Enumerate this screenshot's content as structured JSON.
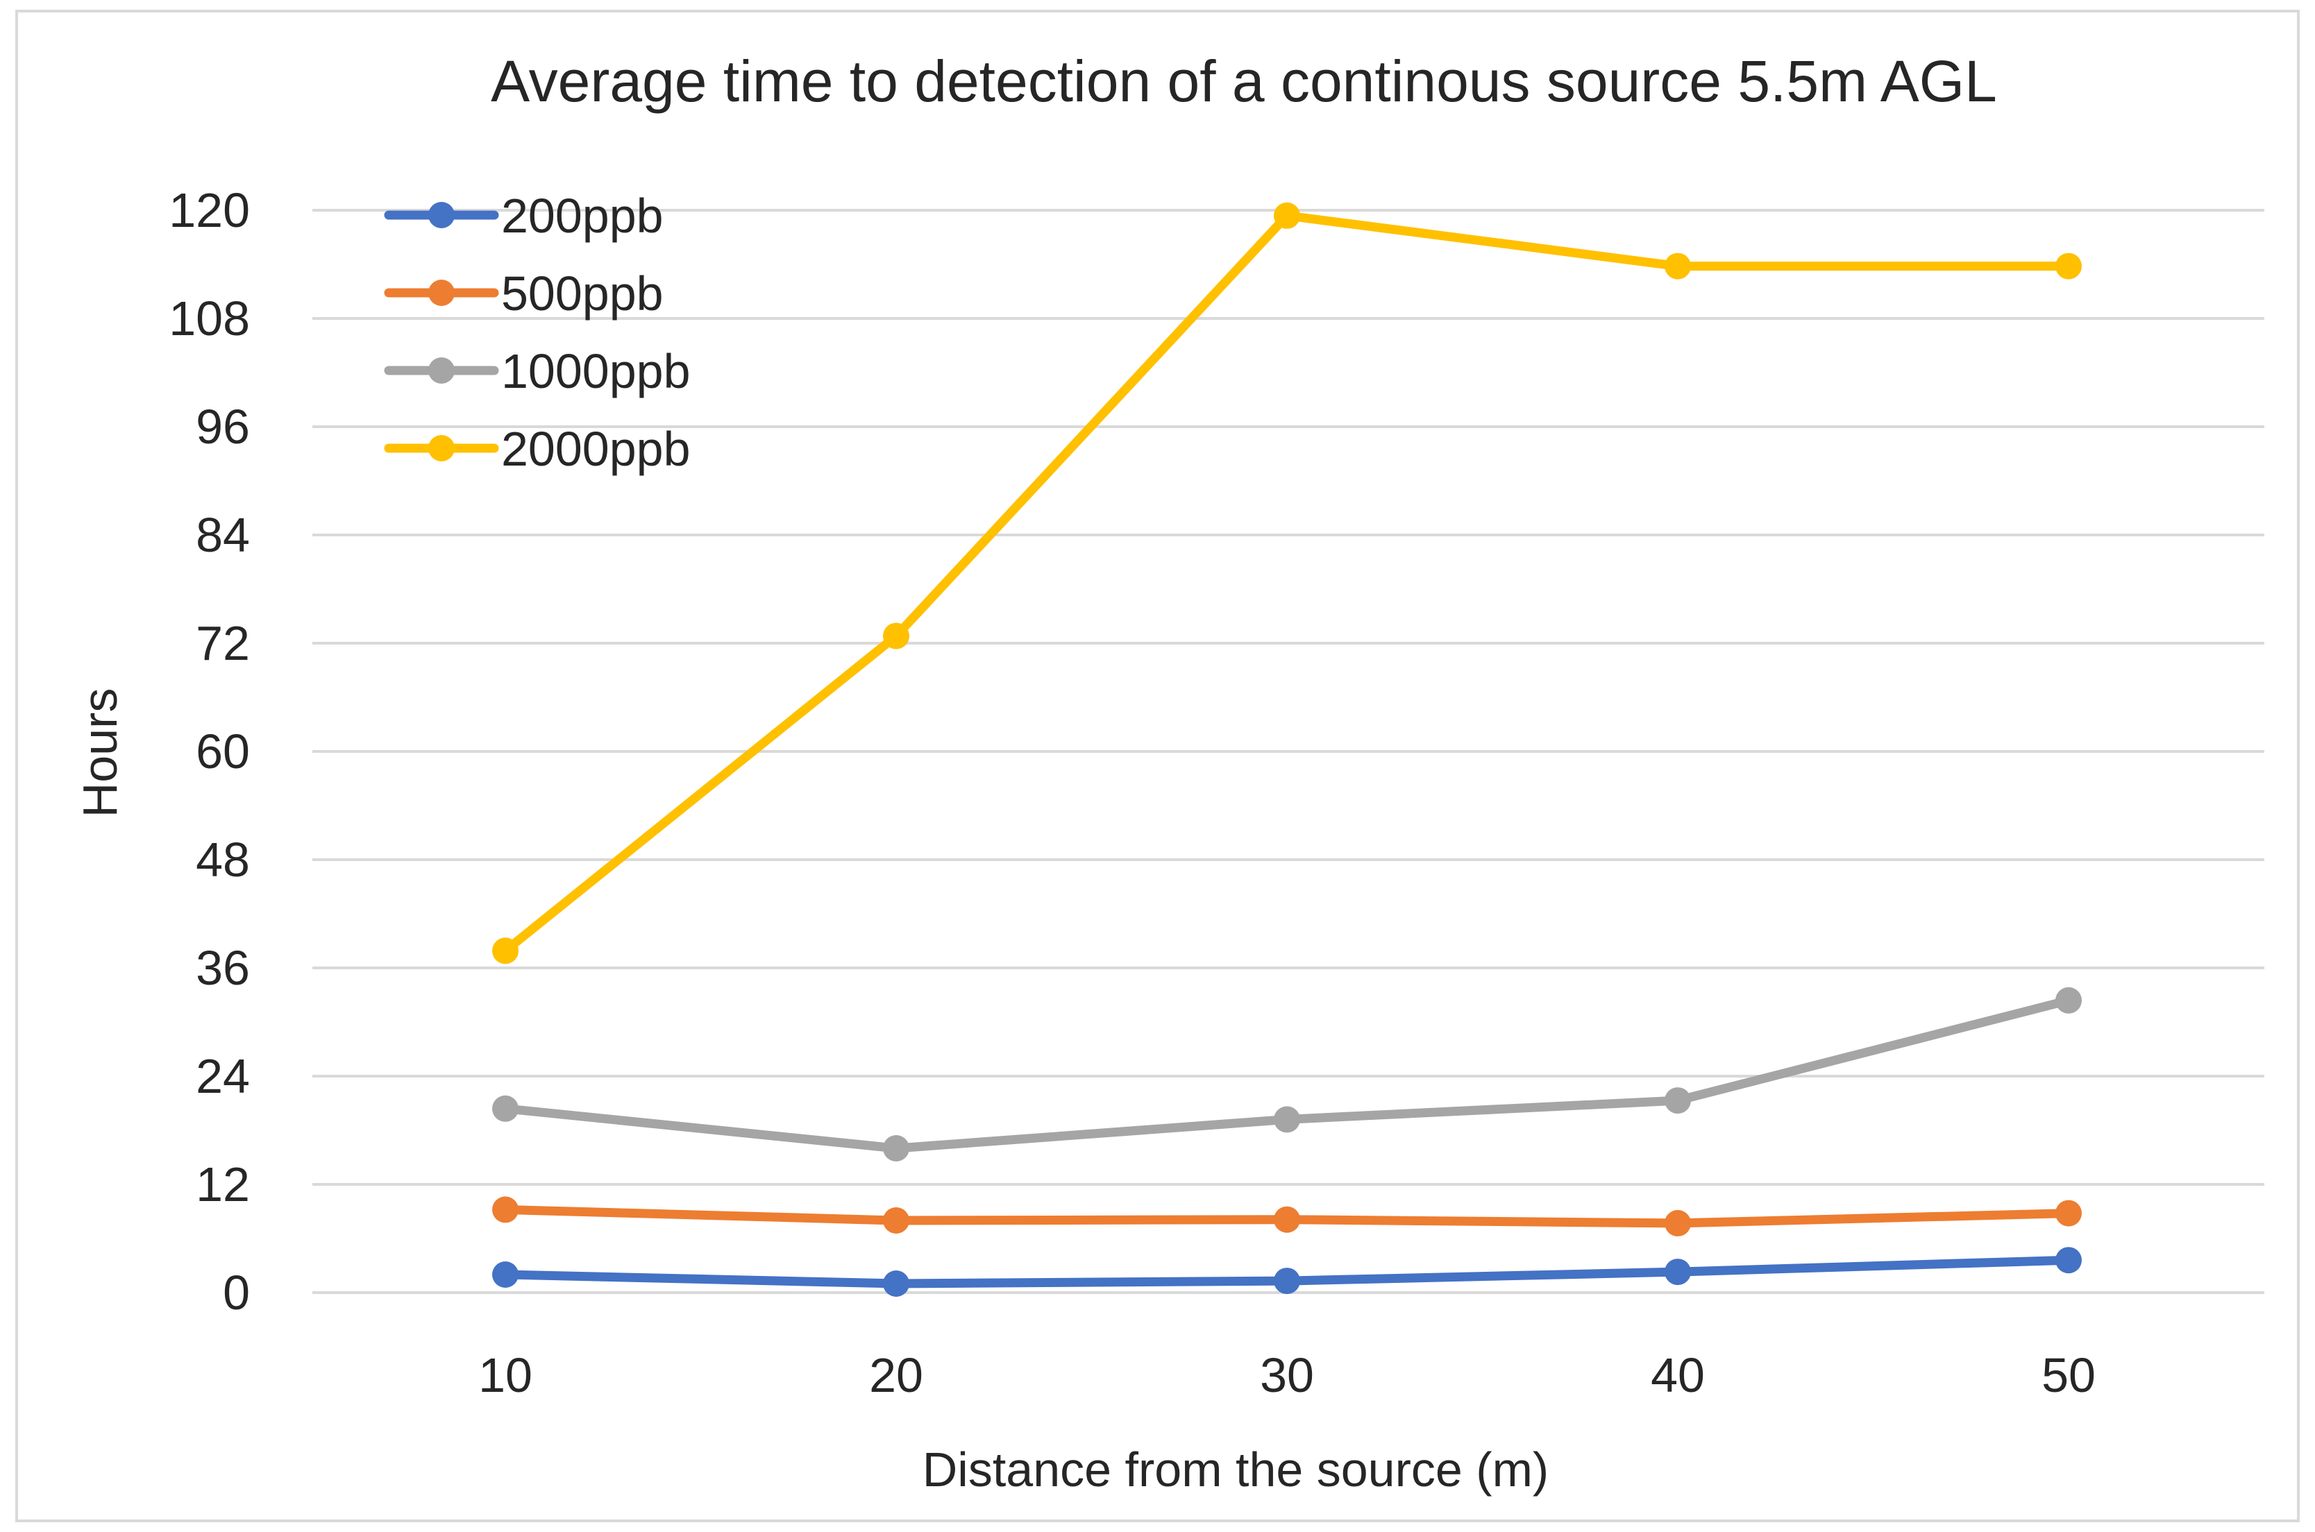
{
  "chart_data": {
    "type": "line",
    "title": "Average time to detection of a continous source 5.5m AGL",
    "xlabel": "Distance from the source (m)",
    "ylabel": "Hours",
    "x": [
      10,
      20,
      30,
      40,
      50
    ],
    "x_tick_labels": [
      "10",
      "20",
      "30",
      "40",
      "50"
    ],
    "ylim": [
      0,
      120
    ],
    "y_ticks": [
      0,
      12,
      24,
      36,
      48,
      60,
      72,
      84,
      96,
      108,
      120
    ],
    "y_tick_labels": [
      "0",
      "12",
      "24",
      "36",
      "48",
      "60",
      "72",
      "84",
      "96",
      "108",
      "120"
    ],
    "grid": true,
    "legend_position": "top-left",
    "series": [
      {
        "name": "200ppb",
        "color": "#4472c4",
        "values": [
          2,
          1,
          1.3,
          2.3,
          3.6
        ]
      },
      {
        "name": "500ppb",
        "color": "#ed7d31",
        "values": [
          9.2,
          8,
          8.1,
          7.7,
          8.8
        ]
      },
      {
        "name": "1000ppb",
        "color": "#a5a5a5",
        "values": [
          20.4,
          16,
          19.2,
          21.3,
          32.4
        ]
      },
      {
        "name": "2000ppb",
        "color": "#ffc000",
        "values": [
          37.9,
          72.8,
          119.4,
          113.8,
          113.8
        ]
      }
    ]
  }
}
